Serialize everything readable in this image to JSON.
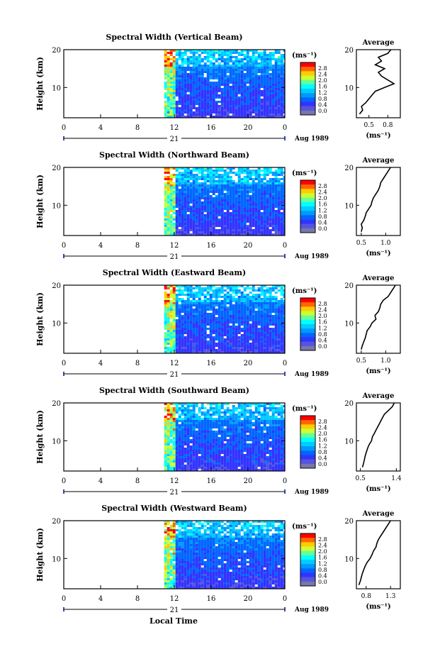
{
  "figure": {
    "date_label": "Aug 1989",
    "day_label": "21",
    "xaxis_title": "Local Time",
    "yaxis_label": "Height (km)",
    "cbar_unit": "(ms⁻¹)",
    "avg_title": "Average",
    "avg_unit": "(ms⁻¹)"
  },
  "colorbar": {
    "ticks": [
      "2.8",
      "2.4",
      "2.0",
      "1.6",
      "1.2",
      "0.8",
      "0.4",
      "0.0"
    ],
    "colors": [
      "#ff0000",
      "#ff6600",
      "#ffcc00",
      "#ccff33",
      "#66ff99",
      "#00ffff",
      "#00ccff",
      "#0099ff",
      "#0066ff",
      "#3333ff",
      "#5555dd",
      "#7777aa"
    ]
  },
  "chart_data": [
    {
      "type": "heatmap",
      "title": "Spectral Width (Vertical Beam)",
      "xlabel": "Local Time",
      "ylabel": "Height (km)",
      "x_ticks": [
        "0",
        "4",
        "8",
        "12",
        "16",
        "20",
        "0"
      ],
      "y_ticks": [
        "20",
        "10"
      ],
      "x_range": [
        0,
        24
      ],
      "y_range": [
        2,
        20
      ],
      "data_start_hour": 10.9,
      "colorbar_range": [
        0.0,
        2.8
      ],
      "average": {
        "x_ticks": [
          "0.5",
          "0.8"
        ],
        "x_range": [
          0.3,
          1.0
        ],
        "y_ticks": [
          "20",
          "10"
        ],
        "profile": [
          [
            0.35,
            3
          ],
          [
            0.4,
            4
          ],
          [
            0.38,
            5
          ],
          [
            0.45,
            6
          ],
          [
            0.5,
            7
          ],
          [
            0.55,
            8
          ],
          [
            0.6,
            9
          ],
          [
            0.75,
            10
          ],
          [
            0.9,
            11
          ],
          [
            0.8,
            12
          ],
          [
            0.7,
            13
          ],
          [
            0.65,
            14
          ],
          [
            0.75,
            15
          ],
          [
            0.6,
            16
          ],
          [
            0.7,
            17
          ],
          [
            0.65,
            18
          ],
          [
            0.8,
            19
          ],
          [
            0.85,
            20
          ]
        ]
      }
    },
    {
      "type": "heatmap",
      "title": "Spectral Width (Northward Beam)",
      "xlabel": "Local Time",
      "ylabel": "Height (km)",
      "x_ticks": [
        "0",
        "4",
        "8",
        "12",
        "16",
        "20",
        "0"
      ],
      "y_ticks": [
        "20",
        "10"
      ],
      "x_range": [
        0,
        24
      ],
      "y_range": [
        2,
        20
      ],
      "data_start_hour": 10.9,
      "colorbar_range": [
        0.0,
        2.8
      ],
      "average": {
        "x_ticks": [
          "0.5",
          "1.0"
        ],
        "x_range": [
          0.4,
          1.3
        ],
        "y_ticks": [
          "20",
          "10"
        ],
        "profile": [
          [
            0.5,
            3
          ],
          [
            0.52,
            4
          ],
          [
            0.5,
            5
          ],
          [
            0.55,
            6
          ],
          [
            0.58,
            7
          ],
          [
            0.6,
            8
          ],
          [
            0.65,
            9
          ],
          [
            0.7,
            10
          ],
          [
            0.72,
            11
          ],
          [
            0.75,
            12
          ],
          [
            0.8,
            13
          ],
          [
            0.85,
            14
          ],
          [
            0.88,
            15
          ],
          [
            0.9,
            16
          ],
          [
            0.95,
            17
          ],
          [
            1.0,
            18
          ],
          [
            1.05,
            19
          ],
          [
            1.1,
            20
          ]
        ]
      }
    },
    {
      "type": "heatmap",
      "title": "Spectral Width (Eastward Beam)",
      "xlabel": "Local Time",
      "ylabel": "Height (km)",
      "x_ticks": [
        "0",
        "4",
        "8",
        "12",
        "16",
        "20",
        "0"
      ],
      "y_ticks": [
        "20",
        "10"
      ],
      "x_range": [
        0,
        24
      ],
      "y_range": [
        2,
        20
      ],
      "data_start_hour": 10.9,
      "colorbar_range": [
        0.0,
        2.8
      ],
      "average": {
        "x_ticks": [
          "0.5",
          "1.0"
        ],
        "x_range": [
          0.4,
          1.3
        ],
        "y_ticks": [
          "20",
          "10"
        ],
        "profile": [
          [
            0.5,
            3
          ],
          [
            0.52,
            4
          ],
          [
            0.55,
            5
          ],
          [
            0.58,
            6
          ],
          [
            0.6,
            7
          ],
          [
            0.62,
            8
          ],
          [
            0.68,
            9
          ],
          [
            0.72,
            10
          ],
          [
            0.8,
            11
          ],
          [
            0.78,
            12
          ],
          [
            0.85,
            13
          ],
          [
            0.88,
            14
          ],
          [
            0.9,
            15
          ],
          [
            0.95,
            16
          ],
          [
            1.05,
            17
          ],
          [
            1.1,
            18
          ],
          [
            1.15,
            19
          ],
          [
            1.2,
            20
          ]
        ]
      }
    },
    {
      "type": "heatmap",
      "title": "Spectral Width (Southward Beam)",
      "xlabel": "Local Time",
      "ylabel": "Height (km)",
      "x_ticks": [
        "0",
        "4",
        "8",
        "12",
        "16",
        "20",
        "0"
      ],
      "y_ticks": [
        "20",
        "10"
      ],
      "x_range": [
        0,
        24
      ],
      "y_range": [
        2,
        20
      ],
      "data_start_hour": 10.9,
      "colorbar_range": [
        0.0,
        2.8
      ],
      "average": {
        "x_ticks": [
          "0.5",
          "1.4"
        ],
        "x_range": [
          0.4,
          1.5
        ],
        "y_ticks": [
          "20",
          "10"
        ],
        "profile": [
          [
            0.55,
            3
          ],
          [
            0.58,
            4
          ],
          [
            0.6,
            5
          ],
          [
            0.62,
            6
          ],
          [
            0.65,
            7
          ],
          [
            0.68,
            8
          ],
          [
            0.72,
            9
          ],
          [
            0.78,
            10
          ],
          [
            0.8,
            11
          ],
          [
            0.85,
            12
          ],
          [
            0.9,
            13
          ],
          [
            0.95,
            14
          ],
          [
            1.0,
            15
          ],
          [
            1.05,
            16
          ],
          [
            1.1,
            17
          ],
          [
            1.2,
            18
          ],
          [
            1.3,
            19
          ],
          [
            1.35,
            20
          ]
        ]
      }
    },
    {
      "type": "heatmap",
      "title": "Spectral Width (Westward Beam)",
      "xlabel": "Local Time",
      "ylabel": "Height (km)",
      "x_ticks": [
        "0",
        "4",
        "8",
        "12",
        "16",
        "20",
        "0"
      ],
      "y_ticks": [
        "20",
        "10"
      ],
      "x_range": [
        0,
        24
      ],
      "y_range": [
        2,
        20
      ],
      "data_start_hour": 10.9,
      "colorbar_range": [
        0.0,
        2.8
      ],
      "average": {
        "x_ticks": [
          "0.8",
          "1.3"
        ],
        "x_range": [
          0.6,
          1.5
        ],
        "y_ticks": [
          "20",
          "10"
        ],
        "profile": [
          [
            0.65,
            3
          ],
          [
            0.68,
            4
          ],
          [
            0.7,
            5
          ],
          [
            0.72,
            6
          ],
          [
            0.75,
            7
          ],
          [
            0.78,
            8
          ],
          [
            0.82,
            9
          ],
          [
            0.88,
            10
          ],
          [
            0.92,
            11
          ],
          [
            0.95,
            12
          ],
          [
            1.0,
            13
          ],
          [
            1.02,
            14
          ],
          [
            1.05,
            15
          ],
          [
            1.1,
            16
          ],
          [
            1.15,
            17
          ],
          [
            1.2,
            18
          ],
          [
            1.25,
            19
          ],
          [
            1.3,
            20
          ]
        ]
      }
    }
  ]
}
